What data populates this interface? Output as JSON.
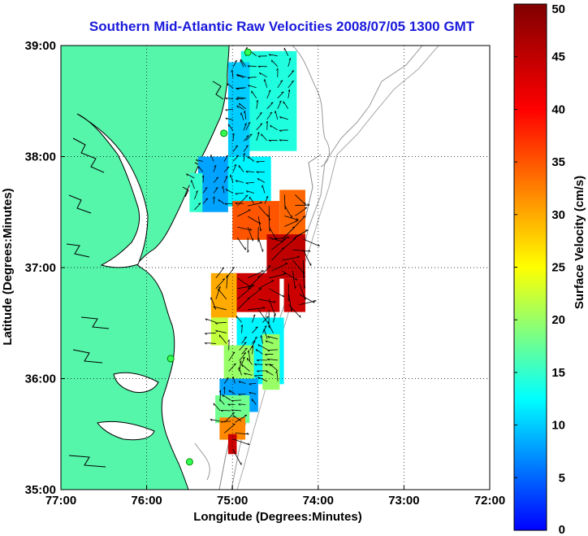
{
  "title": "Southern Mid-Atlantic Raw Velocities 2008/07/05 1300 GMT",
  "map": {
    "x_label": "Longitude (Degrees:Minutes)",
    "y_label": "Latitude (Degrees:Minutes)",
    "x_range": [
      -77,
      -72
    ],
    "y_range": [
      35,
      39
    ],
    "x_ticks": [
      {
        "value": -77,
        "label": "77:00"
      },
      {
        "value": -76,
        "label": "76:00"
      },
      {
        "value": -75,
        "label": "75:00"
      },
      {
        "value": -74,
        "label": "74:00"
      },
      {
        "value": -73,
        "label": "73:00"
      },
      {
        "value": -72,
        "label": "72:00"
      }
    ],
    "y_ticks": [
      {
        "value": 39,
        "label": "39:00"
      },
      {
        "value": 38,
        "label": "38:00"
      },
      {
        "value": 37,
        "label": "37:00"
      },
      {
        "value": 36,
        "label": "36:00"
      },
      {
        "value": 35,
        "label": "35:00"
      }
    ],
    "land_color": "#55f5aa",
    "grid": true
  },
  "colorbar": {
    "label": "Surface Velocity (cm/s)",
    "min": 0,
    "max": 50,
    "ticks": [
      {
        "value": 0,
        "label": "0"
      },
      {
        "value": 5,
        "label": "5"
      },
      {
        "value": 10,
        "label": "10"
      },
      {
        "value": 15,
        "label": "15"
      },
      {
        "value": 20,
        "label": "20"
      },
      {
        "value": 25,
        "label": "25"
      },
      {
        "value": 30,
        "label": "30"
      },
      {
        "value": 35,
        "label": "35"
      },
      {
        "value": 40,
        "label": "40"
      },
      {
        "value": 45,
        "label": "45"
      },
      {
        "value": 50,
        "label": "50"
      }
    ],
    "colormap": [
      "#0000ff",
      "#00ffff",
      "#ffff00",
      "#ff0000",
      "#800000"
    ]
  },
  "stations": [
    {
      "lon": -74.82,
      "lat": 38.94
    },
    {
      "lon": -75.1,
      "lat": 38.21
    },
    {
      "lon": -75.72,
      "lat": 36.18
    },
    {
      "lon": -75.5,
      "lat": 35.25
    }
  ],
  "velocity_regions": [
    {
      "lon": [
        -74.9,
        -74.25
      ],
      "lat": [
        38.05,
        38.95
      ],
      "speed": 14
    },
    {
      "lon": [
        -75.05,
        -74.8
      ],
      "lat": [
        37.95,
        38.85
      ],
      "speed": 10
    },
    {
      "lon": [
        -75.4,
        -75.05
      ],
      "lat": [
        37.5,
        38.0
      ],
      "speed": 8
    },
    {
      "lon": [
        -75.5,
        -75.35
      ],
      "lat": [
        37.5,
        37.85
      ],
      "speed": 15
    },
    {
      "lon": [
        -75.05,
        -74.55
      ],
      "lat": [
        37.55,
        38.0
      ],
      "speed": 12
    },
    {
      "lon": [
        -75.0,
        -74.45
      ],
      "lat": [
        37.25,
        37.6
      ],
      "speed": 35
    },
    {
      "lon": [
        -74.45,
        -74.15
      ],
      "lat": [
        37.2,
        37.7
      ],
      "speed": 34
    },
    {
      "lon": [
        -74.6,
        -74.15
      ],
      "lat": [
        36.9,
        37.3
      ],
      "speed": 45
    },
    {
      "lon": [
        -75.0,
        -74.45
      ],
      "lat": [
        36.6,
        36.95
      ],
      "speed": 44
    },
    {
      "lon": [
        -75.25,
        -74.95
      ],
      "lat": [
        36.55,
        36.95
      ],
      "speed": 30
    },
    {
      "lon": [
        -75.25,
        -75.05
      ],
      "lat": [
        36.3,
        36.55
      ],
      "speed": 22
    },
    {
      "lon": [
        -74.4,
        -74.15
      ],
      "lat": [
        36.6,
        36.9
      ],
      "speed": 44
    },
    {
      "lon": [
        -74.95,
        -74.4
      ],
      "lat": [
        35.95,
        36.55
      ],
      "speed": 12
    },
    {
      "lon": [
        -75.1,
        -74.75
      ],
      "lat": [
        36.0,
        36.3
      ],
      "speed": 20
    },
    {
      "lon": [
        -74.65,
        -74.45
      ],
      "lat": [
        35.9,
        36.4
      ],
      "speed": 20
    },
    {
      "lon": [
        -75.15,
        -74.7
      ],
      "lat": [
        35.7,
        36.0
      ],
      "speed": 8
    },
    {
      "lon": [
        -75.2,
        -74.8
      ],
      "lat": [
        35.6,
        35.85
      ],
      "speed": 18
    },
    {
      "lon": [
        -75.15,
        -74.85
      ],
      "lat": [
        35.45,
        35.65
      ],
      "speed": 32
    },
    {
      "lon": [
        -75.05,
        -74.95
      ],
      "lat": [
        35.32,
        35.5
      ],
      "speed": 44
    }
  ]
}
